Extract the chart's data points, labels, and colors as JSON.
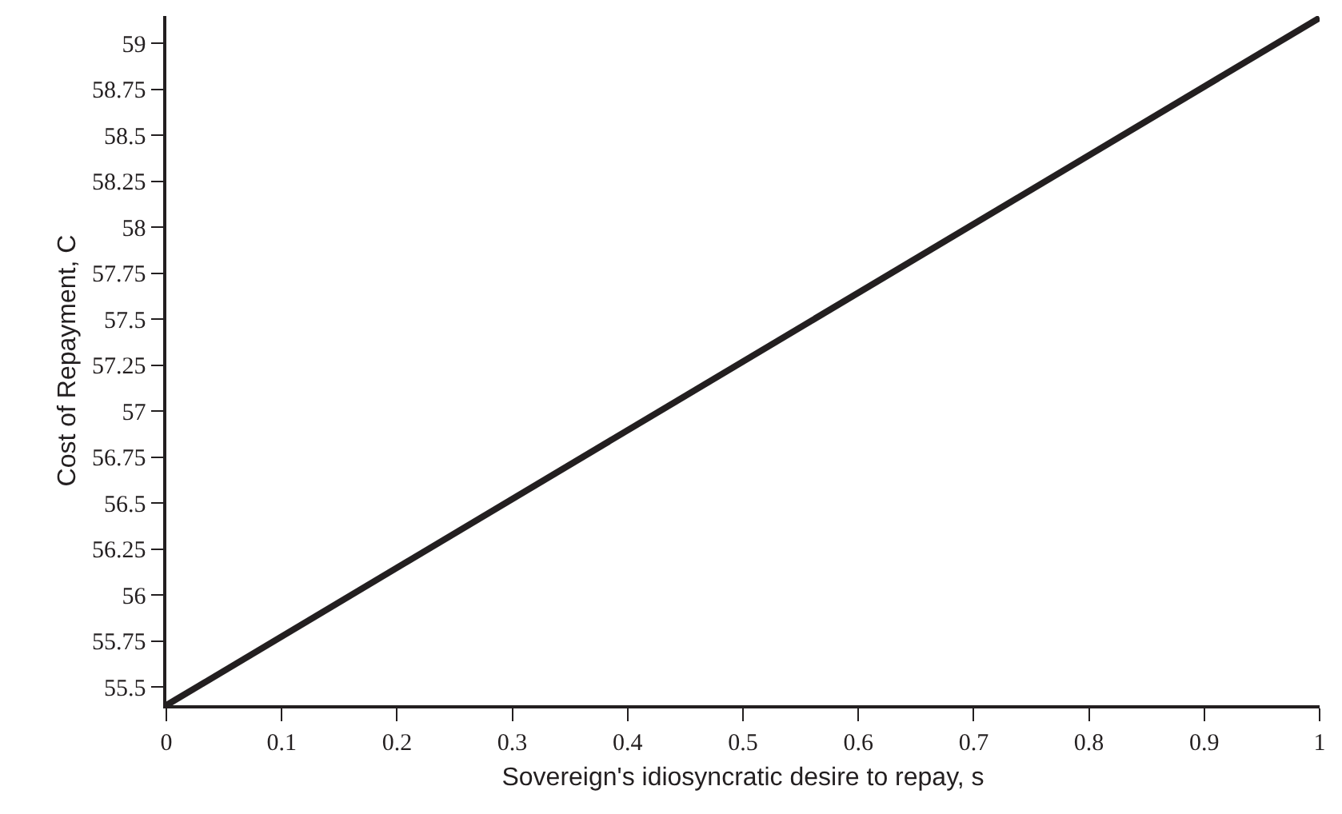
{
  "chart_data": {
    "type": "line",
    "xlabel": "Sovereign's idiosyncratic desire to repay, s",
    "ylabel": "Cost of Repayment, C",
    "x": [
      0,
      1
    ],
    "series": [
      {
        "color": "#231f20",
        "values": [
          55.4,
          59.14
        ]
      }
    ],
    "xlim": [
      0,
      1
    ],
    "xticks": [
      0,
      0.1,
      0.2,
      0.3,
      0.4,
      0.5,
      0.6,
      0.7,
      0.8,
      0.9,
      1
    ],
    "ylim": [
      55.4,
      59.15
    ],
    "yticks": [
      55.5,
      55.75,
      56,
      56.25,
      56.5,
      56.75,
      57,
      57.25,
      57.5,
      57.75,
      58,
      58.25,
      58.5,
      58.75,
      59
    ],
    "marker": "none",
    "line_style": "solid"
  }
}
